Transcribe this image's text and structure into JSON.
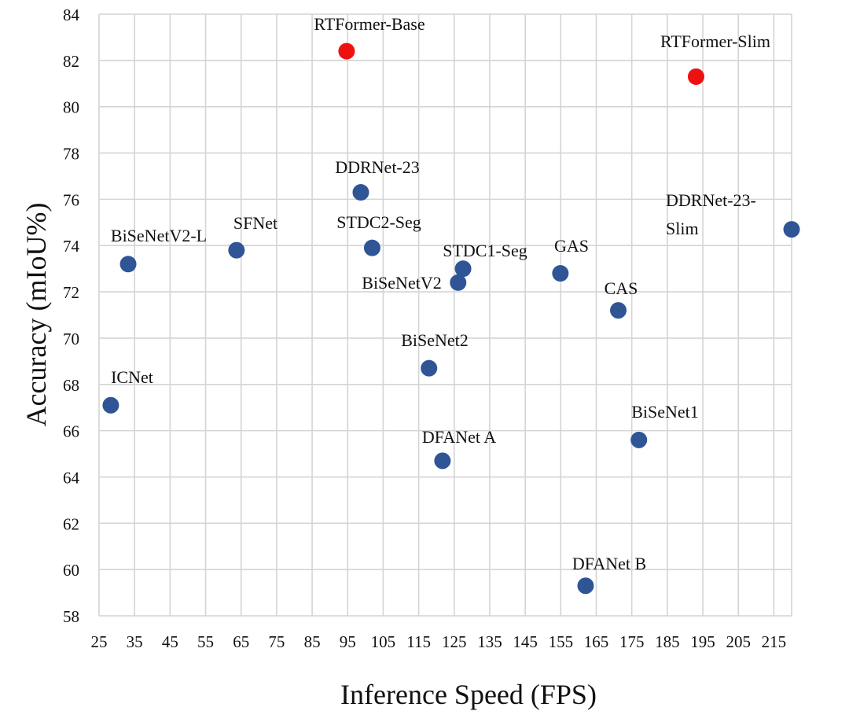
{
  "chart_data": {
    "type": "scatter",
    "title": "",
    "xlabel": "Inference Speed (FPS)",
    "ylabel": "Accuracy (mIoU%)",
    "xlim": [
      25,
      220
    ],
    "ylim": [
      58,
      84
    ],
    "xticks": [
      25,
      35,
      45,
      55,
      65,
      75,
      85,
      95,
      105,
      115,
      125,
      135,
      145,
      155,
      165,
      175,
      185,
      195,
      205,
      215
    ],
    "yticks": [
      58,
      60,
      62,
      64,
      66,
      68,
      70,
      72,
      74,
      76,
      78,
      80,
      82,
      84
    ],
    "grid": true,
    "legend": "none",
    "colors": {
      "highlight": "#ee1111",
      "default": "#2f5597"
    },
    "points": [
      {
        "label": "RTFormer-Base",
        "x": 94.7,
        "y": 82.4,
        "highlight": true
      },
      {
        "label": "RTFormer-Slim",
        "x": 193.1,
        "y": 81.3,
        "highlight": true
      },
      {
        "label": "DDRNet-23",
        "x": 98.7,
        "y": 76.3,
        "highlight": false
      },
      {
        "label": "DDRNet-23-Slim",
        "x": 220,
        "y": 74.7,
        "highlight": false
      },
      {
        "label": "BiSeNetV2-L",
        "x": 33.2,
        "y": 73.2,
        "highlight": false
      },
      {
        "label": "SFNet",
        "x": 63.7,
        "y": 73.8,
        "highlight": false
      },
      {
        "label": "STDC2-Seg",
        "x": 101.9,
        "y": 73.9,
        "highlight": false
      },
      {
        "label": "STDC1-Seg",
        "x": 127.5,
        "y": 73.0,
        "highlight": false
      },
      {
        "label": "BiSeNetV2",
        "x": 126.1,
        "y": 72.4,
        "highlight": false
      },
      {
        "label": "GAS",
        "x": 154.9,
        "y": 72.8,
        "highlight": false
      },
      {
        "label": "CAS",
        "x": 171.2,
        "y": 71.2,
        "highlight": false
      },
      {
        "label": "BiSeNet2",
        "x": 117.9,
        "y": 68.7,
        "highlight": false
      },
      {
        "label": "ICNet",
        "x": 28.3,
        "y": 67.1,
        "highlight": false
      },
      {
        "label": "BiSeNet1",
        "x": 177.0,
        "y": 65.6,
        "highlight": false
      },
      {
        "label": "DFANet A",
        "x": 121.7,
        "y": 64.7,
        "highlight": false
      },
      {
        "label": "DFANet B",
        "x": 162.0,
        "y": 59.3,
        "highlight": false
      }
    ]
  }
}
